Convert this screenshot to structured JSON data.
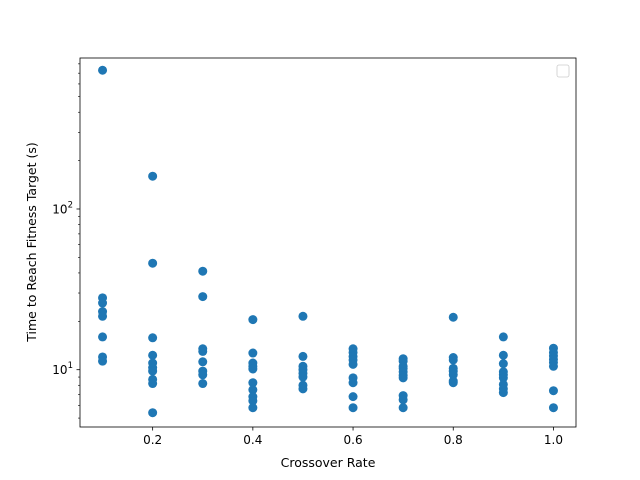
{
  "chart_data": {
    "type": "scatter",
    "title": "",
    "xlabel": "Crossover Rate",
    "ylabel": "Time to Reach Fitness Target (s)",
    "xlim": [
      0.055,
      1.045
    ],
    "ylim": [
      4.4,
      870
    ],
    "yscale": "log",
    "x_ticks": [
      {
        "value": 0.2,
        "label": "0.2"
      },
      {
        "value": 0.4,
        "label": "0.4"
      },
      {
        "value": 0.6,
        "label": "0.6"
      },
      {
        "value": 0.8,
        "label": "0.8"
      },
      {
        "value": 1.0,
        "label": "1.0"
      }
    ],
    "y_major_ticks": [
      {
        "value": 10,
        "label": "10",
        "exp": "1"
      },
      {
        "value": 100,
        "label": "10",
        "exp": "2"
      }
    ],
    "grid": false,
    "legend": {
      "placement": "top-right",
      "entries": []
    },
    "marker_color": "#1f77b4",
    "series": [
      {
        "points": [
          [
            0.1,
            730
          ],
          [
            0.1,
            28
          ],
          [
            0.1,
            26
          ],
          [
            0.1,
            23
          ],
          [
            0.1,
            21.5
          ],
          [
            0.1,
            16
          ],
          [
            0.1,
            12
          ],
          [
            0.1,
            11.3
          ],
          [
            0.2,
            160
          ],
          [
            0.2,
            46
          ],
          [
            0.2,
            15.8
          ],
          [
            0.2,
            12.3
          ],
          [
            0.2,
            11
          ],
          [
            0.2,
            10.3
          ],
          [
            0.2,
            9.8
          ],
          [
            0.2,
            8.7
          ],
          [
            0.2,
            8.2
          ],
          [
            0.2,
            5.4
          ],
          [
            0.3,
            41
          ],
          [
            0.3,
            28.5
          ],
          [
            0.3,
            13.5
          ],
          [
            0.3,
            13
          ],
          [
            0.3,
            11.2
          ],
          [
            0.3,
            9.8
          ],
          [
            0.3,
            9.3
          ],
          [
            0.3,
            8.2
          ],
          [
            0.4,
            20.5
          ],
          [
            0.4,
            12.7
          ],
          [
            0.4,
            11
          ],
          [
            0.4,
            10.5
          ],
          [
            0.4,
            10.1
          ],
          [
            0.4,
            8.3
          ],
          [
            0.4,
            7.5
          ],
          [
            0.4,
            6.8
          ],
          [
            0.4,
            6.4
          ],
          [
            0.4,
            5.8
          ],
          [
            0.5,
            21.5
          ],
          [
            0.5,
            12.1
          ],
          [
            0.5,
            10.5
          ],
          [
            0.5,
            10
          ],
          [
            0.5,
            9.5
          ],
          [
            0.5,
            9
          ],
          [
            0.5,
            8
          ],
          [
            0.5,
            7.6
          ],
          [
            0.6,
            13.5
          ],
          [
            0.6,
            12.8
          ],
          [
            0.6,
            12.1
          ],
          [
            0.6,
            11.5
          ],
          [
            0.6,
            10.8
          ],
          [
            0.6,
            8.9
          ],
          [
            0.6,
            8.3
          ],
          [
            0.6,
            6.8
          ],
          [
            0.6,
            5.8
          ],
          [
            0.7,
            11.7
          ],
          [
            0.7,
            11.3
          ],
          [
            0.7,
            10.5
          ],
          [
            0.7,
            10.2
          ],
          [
            0.7,
            9.7
          ],
          [
            0.7,
            9.2
          ],
          [
            0.7,
            8.9
          ],
          [
            0.7,
            6.9
          ],
          [
            0.7,
            6.5
          ],
          [
            0.7,
            5.8
          ],
          [
            0.8,
            21.2
          ],
          [
            0.8,
            11.9
          ],
          [
            0.8,
            11.5
          ],
          [
            0.8,
            10.2
          ],
          [
            0.8,
            9.8
          ],
          [
            0.8,
            9.3
          ],
          [
            0.8,
            8.5
          ],
          [
            0.8,
            8.3
          ],
          [
            0.9,
            16
          ],
          [
            0.9,
            12.3
          ],
          [
            0.9,
            10.9
          ],
          [
            0.9,
            9.7
          ],
          [
            0.9,
            9.3
          ],
          [
            0.9,
            8.9
          ],
          [
            0.9,
            8.1
          ],
          [
            0.9,
            7.6
          ],
          [
            0.9,
            7.2
          ],
          [
            1.0,
            13.6
          ],
          [
            1.0,
            12.8
          ],
          [
            1.0,
            12.2
          ],
          [
            1.0,
            11.6
          ],
          [
            1.0,
            11.1
          ],
          [
            1.0,
            10.5
          ],
          [
            1.0,
            7.4
          ],
          [
            1.0,
            5.8
          ]
        ]
      }
    ]
  }
}
